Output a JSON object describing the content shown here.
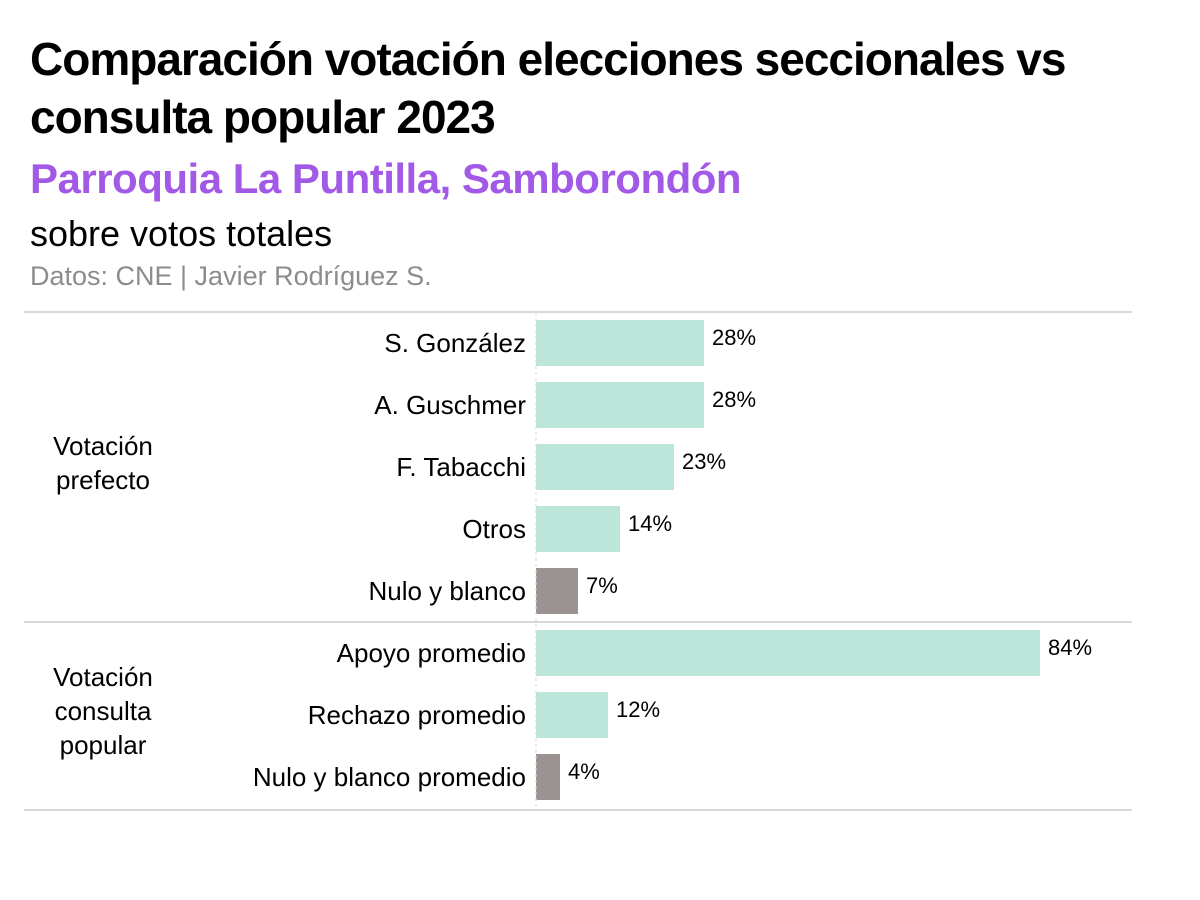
{
  "title": "Comparación votación elecciones seccionales vs consulta popular 2023",
  "subtitle": "Parroquia La Puntilla, Samborondón",
  "caption": "sobre votos totales",
  "source": "Datos: CNE | Javier Rodríguez S.",
  "colors": {
    "subtitle": "#a259e6",
    "main_bar": "#bde6da",
    "null_bar": "#9b9391",
    "rule": "#cccccc",
    "source": "#8c8c8c"
  },
  "chart_data": {
    "type": "bar",
    "orientation": "horizontal",
    "title": "Comparación votación elecciones seccionales vs consulta popular 2023",
    "subtitle": "Parroquia La Puntilla, Samborondón",
    "xlabel": "",
    "ylabel": "",
    "xlim": [
      0,
      100
    ],
    "unit": "%",
    "groups": [
      {
        "label_lines": [
          "Votación",
          "prefecto"
        ],
        "items": [
          {
            "category": "S. González",
            "value": 28,
            "label": "28%",
            "kind": "main"
          },
          {
            "category": "A. Guschmer",
            "value": 28,
            "label": "28%",
            "kind": "main"
          },
          {
            "category": "F. Tabacchi",
            "value": 23,
            "label": "23%",
            "kind": "main"
          },
          {
            "category": "Otros",
            "value": 14,
            "label": "14%",
            "kind": "main"
          },
          {
            "category": "Nulo y blanco",
            "value": 7,
            "label": "7%",
            "kind": "null"
          }
        ]
      },
      {
        "label_lines": [
          "Votación",
          "consulta",
          "popular"
        ],
        "items": [
          {
            "category": "Apoyo promedio",
            "value": 84,
            "label": "84%",
            "kind": "main"
          },
          {
            "category": "Rechazo promedio",
            "value": 12,
            "label": "12%",
            "kind": "main"
          },
          {
            "category": "Nulo y blanco promedio",
            "value": 4,
            "label": "4%",
            "kind": "null"
          }
        ]
      }
    ]
  }
}
